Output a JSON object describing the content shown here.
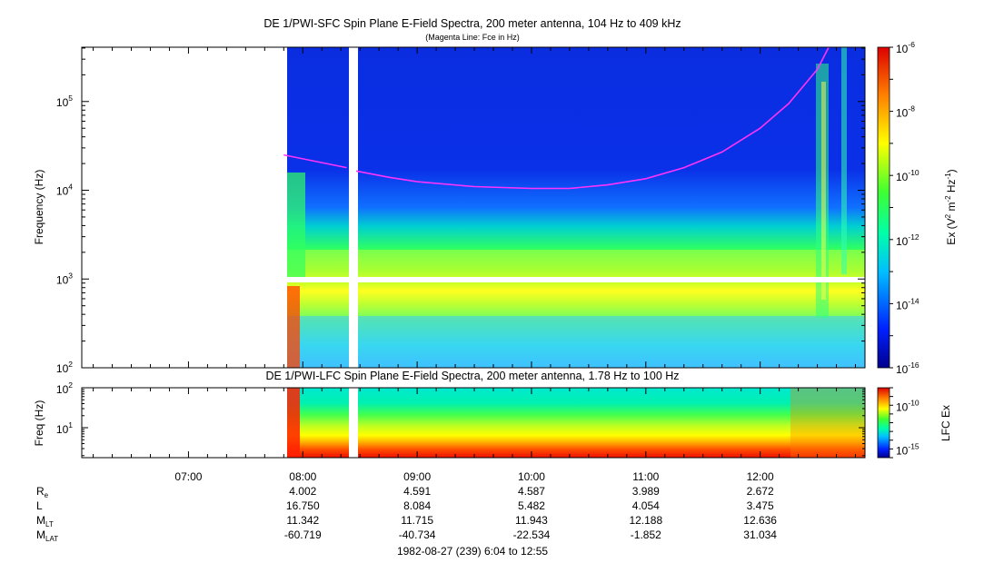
{
  "chart_data": [
    {
      "type": "heatmap",
      "title": "DE 1/PWI-SFC  Spin Plane E-Field Spectra, 200 meter antenna, 104 Hz to 409 kHz",
      "subtitle": "(Magenta Line: Fce in Hz)",
      "ylabel": "Frequency (Hz)",
      "yscale": "log",
      "ylim": [
        100,
        409000
      ],
      "yticks": [
        {
          "base": "10",
          "exp": "2",
          "value": 100
        },
        {
          "base": "10",
          "exp": "3",
          "value": 1000
        },
        {
          "base": "10",
          "exp": "4",
          "value": 10000
        },
        {
          "base": "10",
          "exp": "5",
          "value": 100000
        }
      ],
      "xlim": [
        "06:04",
        "12:55"
      ],
      "data_start": "07:50",
      "data_gap": [
        "08:23",
        "08:27"
      ],
      "freq_gap_hz": 1000,
      "colorbar": {
        "label_parts": [
          "Ex (V",
          "2",
          " m",
          "-2",
          " Hz",
          "-1",
          ")"
        ],
        "scale": "log",
        "range": [
          1e-16,
          1e-06
        ],
        "ticks": [
          {
            "base": "10",
            "exp": "-6",
            "value": -6
          },
          {
            "base": "10",
            "exp": "-8",
            "value": -8
          },
          {
            "base": "10",
            "exp": "-10",
            "value": -10
          },
          {
            "base": "10",
            "exp": "-12",
            "value": -12
          },
          {
            "base": "10",
            "exp": "-14",
            "value": -14
          },
          {
            "base": "10",
            "exp": "-16",
            "value": -16
          }
        ]
      },
      "fce_line": {
        "color": "#ff33ff",
        "points": [
          [
            "07:50",
            25000
          ],
          [
            "08:23",
            18000
          ],
          [
            "08:28",
            16500
          ],
          [
            "08:45",
            14000
          ],
          [
            "09:00",
            12500
          ],
          [
            "09:30",
            11000
          ],
          [
            "10:00",
            10500
          ],
          [
            "10:20",
            10500
          ],
          [
            "10:40",
            11500
          ],
          [
            "11:00",
            13500
          ],
          [
            "11:20",
            18000
          ],
          [
            "11:40",
            27000
          ],
          [
            "12:00",
            50000
          ],
          [
            "12:15",
            95000
          ],
          [
            "12:30",
            230000
          ],
          [
            "12:36",
            409000
          ]
        ]
      }
    },
    {
      "type": "heatmap",
      "title": "DE 1/PWI-LFC  Spin Plane E-Field Spectra, 200 meter antenna, 1.78 Hz to 100 Hz",
      "ylabel": "Freq (Hz)",
      "yscale": "log",
      "ylim": [
        1.78,
        100
      ],
      "yticks": [
        {
          "base": "10",
          "exp": "1",
          "value": 10
        },
        {
          "base": "10",
          "exp": "2",
          "value": 100
        }
      ],
      "xlim": [
        "06:04",
        "12:55"
      ],
      "data_start": "07:50",
      "data_gap": [
        "08:23",
        "08:27"
      ],
      "colorbar": {
        "label": "LFC Ex",
        "scale": "log",
        "range": [
          1e-16,
          1e-08
        ],
        "ticks": [
          {
            "base": "10",
            "exp": "-10",
            "value": -10
          },
          {
            "base": "10",
            "exp": "-15",
            "value": -15
          }
        ]
      }
    }
  ],
  "time_axis": {
    "ticks": [
      "07:00",
      "08:00",
      "09:00",
      "10:00",
      "11:00",
      "12:00"
    ],
    "tick_hours": [
      7,
      8,
      9,
      10,
      11,
      12
    ],
    "start_hour": 6.0667,
    "end_hour": 12.9167
  },
  "ephemeris": {
    "rows": [
      {
        "label": "R",
        "sub": "e",
        "values": [
          "4.002",
          "4.591",
          "4.587",
          "3.989",
          "2.672"
        ]
      },
      {
        "label": "L",
        "sub": "",
        "values": [
          "16.750",
          "8.084",
          "5.482",
          "4.054",
          "3.475"
        ]
      },
      {
        "label": "M",
        "sub": "LT",
        "values": [
          "11.342",
          "11.715",
          "11.943",
          "12.188",
          "12.636"
        ]
      },
      {
        "label": "M",
        "sub": "LAT",
        "values": [
          "-60.719",
          "-40.734",
          "-22.534",
          "-1.852",
          "31.034"
        ]
      }
    ],
    "value_hours": [
      8,
      9,
      10,
      11,
      12
    ]
  },
  "footer": "1982-08-27 (239) 6:04 to 12:55"
}
